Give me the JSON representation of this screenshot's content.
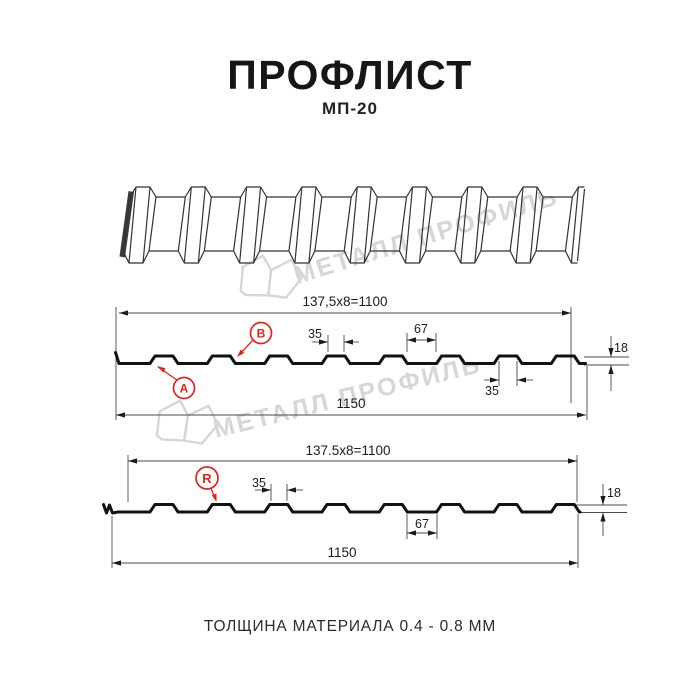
{
  "header": {
    "title": "ПРОФЛИСТ",
    "subtitle": "МП-20"
  },
  "watermark": {
    "text": "МЕТАЛЛ ПРОФИЛЬ"
  },
  "top_section": {
    "formula": "137,5x8=1100",
    "rib_top_width": "35",
    "groove_width": "67",
    "rib_bottom_width": "35",
    "height": "18",
    "total_width": "1150",
    "label_a": "A",
    "label_b": "B"
  },
  "bottom_section": {
    "formula": "137.5x8=1100",
    "rib_top_width": "35",
    "groove_width": "67",
    "height": "18",
    "total_width": "1150",
    "label_r": "R"
  },
  "footer": {
    "text": "ТОЛЩИНА МАТЕРИАЛА 0.4 - 0.8 ММ"
  },
  "colors": {
    "accent_red": "#e8221a",
    "watermark_gray": "#d6d6d6",
    "line_black": "#121212",
    "dim_gray": "#4a4a4a"
  }
}
